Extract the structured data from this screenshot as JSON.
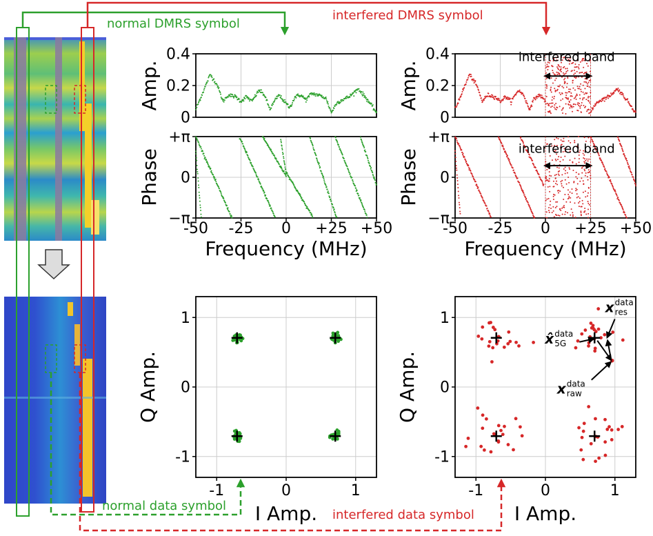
{
  "colors": {
    "normal": "#2ca02c",
    "interfered": "#d62728",
    "axis": "#000000",
    "grid": "#cccccc"
  },
  "annotations": {
    "normal_dmrs": "normal DMRS symbol",
    "interfered_dmrs": "interfered DMRS symbol",
    "normal_data": "normal data symbol",
    "interfered_data": "interfered data symbol",
    "interfered_band": "interfered band"
  },
  "chart_data": [
    {
      "id": "normal-amp",
      "type": "scatter",
      "title": "",
      "xlabel": "",
      "ylabel": "Amp.",
      "xlim": [
        -50,
        50
      ],
      "ylim": [
        0,
        0.4
      ],
      "xticks": [
        "-50",
        "-25",
        "0",
        "+25",
        "+50"
      ],
      "yticks": [
        "0",
        "0.2",
        "0.4"
      ],
      "trend": {
        "x": [
          -50,
          -46,
          -42,
          -38,
          -35,
          -32,
          -28,
          -25,
          -22,
          -19,
          -15,
          -12,
          -9,
          -6,
          -4,
          -1,
          2,
          5,
          8,
          11,
          14,
          18,
          22,
          25,
          28,
          31,
          35,
          40,
          45,
          50
        ],
        "y": [
          0.05,
          0.16,
          0.27,
          0.2,
          0.1,
          0.14,
          0.13,
          0.1,
          0.13,
          0.1,
          0.17,
          0.14,
          0.05,
          0.11,
          0.14,
          0.1,
          0.06,
          0.13,
          0.14,
          0.11,
          0.15,
          0.14,
          0.12,
          0.03,
          0.09,
          0.11,
          0.13,
          0.18,
          0.11,
          0.03
        ]
      }
    },
    {
      "id": "interfered-amp",
      "type": "scatter",
      "ylabel": "Amp.",
      "xlim": [
        -50,
        50
      ],
      "ylim": [
        0,
        0.4
      ],
      "xticks": [
        "-50",
        "-25",
        "0",
        "+25",
        "+50"
      ],
      "yticks": [
        "0",
        "0.2",
        "0.4"
      ],
      "interfered_band": [
        0,
        25
      ],
      "trend": {
        "x": [
          -50,
          -46,
          -42,
          -38,
          -35,
          -32,
          -28,
          -25,
          -22,
          -19,
          -15,
          -12,
          -9,
          -6,
          -3,
          0,
          25,
          28,
          31,
          35,
          40,
          45,
          50
        ],
        "y": [
          0.05,
          0.16,
          0.27,
          0.2,
          0.1,
          0.14,
          0.13,
          0.1,
          0.13,
          0.1,
          0.17,
          0.14,
          0.05,
          0.12,
          0.14,
          0.1,
          0.03,
          0.09,
          0.11,
          0.13,
          0.18,
          0.11,
          0.03
        ]
      }
    },
    {
      "id": "normal-phase",
      "type": "scatter",
      "ylabel": "Phase",
      "xlim": [
        -50,
        50
      ],
      "ylim": [
        -3.1416,
        3.1416
      ],
      "xticks": [
        "-50",
        "-25",
        "0",
        "+25",
        "+50"
      ],
      "yticks": [
        "+π",
        "0",
        "−π"
      ],
      "xlabel": "Frequency (MHz)",
      "wraps": [
        {
          "x0": -50,
          "y0": 2.0,
          "x1": -47,
          "y1": -3.14
        },
        {
          "x0": -50,
          "y0": 3.14,
          "x1": -30,
          "y1": -3.14
        },
        {
          "x0": -26,
          "y0": 3.14,
          "x1": -6,
          "y1": -3.14
        },
        {
          "x0": -13,
          "y0": 3.14,
          "x1": 0,
          "y1": 0.1
        },
        {
          "x0": -3,
          "y0": 2.9,
          "x1": 0,
          "y1": 0.3
        },
        {
          "x0": 0,
          "y0": 0.4,
          "x1": 15,
          "y1": -3.14
        },
        {
          "x0": 13,
          "y0": 3.14,
          "x1": 28,
          "y1": -3.14
        },
        {
          "x0": 27,
          "y0": 3.14,
          "x1": 45,
          "y1": -3.14
        },
        {
          "x0": 41,
          "y0": 3.14,
          "x1": 50,
          "y1": -0.6
        }
      ]
    },
    {
      "id": "interfered-phase",
      "type": "scatter",
      "ylabel": "Phase",
      "xlim": [
        -50,
        50
      ],
      "ylim": [
        -3.1416,
        3.1416
      ],
      "xticks": [
        "-50",
        "-25",
        "0",
        "+25",
        "+50"
      ],
      "yticks": [
        "+π",
        "0",
        "−π"
      ],
      "xlabel": "Frequency (MHz)",
      "interfered_band": [
        0,
        25
      ],
      "wraps": [
        {
          "x0": -50,
          "y0": 2.0,
          "x1": -47,
          "y1": -3.14
        },
        {
          "x0": -50,
          "y0": 3.14,
          "x1": -30,
          "y1": -3.14
        },
        {
          "x0": -26,
          "y0": 3.14,
          "x1": -6,
          "y1": -3.14
        },
        {
          "x0": -14,
          "y0": 3.14,
          "x1": -1,
          "y1": -0.6
        },
        {
          "x0": 25,
          "y0": 3.14,
          "x1": 45,
          "y1": -3.14
        },
        {
          "x0": 40,
          "y0": 3.14,
          "x1": 50,
          "y1": -0.6
        }
      ]
    },
    {
      "id": "normal-constellation",
      "type": "scatter",
      "xlabel": "I Amp.",
      "ylabel": "Q Amp.",
      "xlim": [
        -1.3,
        1.3
      ],
      "ylim": [
        -1.3,
        1.3
      ],
      "xticks": [
        "-1",
        "0",
        "1"
      ],
      "yticks": [
        "-1",
        "0",
        "1"
      ],
      "ideal": [
        [
          -0.707,
          0.707
        ],
        [
          0.707,
          0.707
        ],
        [
          -0.707,
          -0.707
        ],
        [
          0.707,
          -0.707
        ]
      ],
      "spread": 0.06
    },
    {
      "id": "interfered-constellation",
      "type": "scatter",
      "xlabel": "I Amp.",
      "ylabel": "Q Amp.",
      "xlim": [
        -1.3,
        1.3
      ],
      "ylim": [
        -1.3,
        1.3
      ],
      "xticks": [
        "-1",
        "0",
        "1"
      ],
      "yticks": [
        "-1",
        "0",
        "1"
      ],
      "ideal": [
        [
          -0.707,
          0.707
        ],
        [
          0.707,
          0.707
        ],
        [
          -0.707,
          -0.707
        ],
        [
          0.707,
          -0.707
        ]
      ],
      "spread": 0.18,
      "highlight": {
        "x5g": [
          0.707,
          0.707
        ],
        "xres": [
          0.86,
          0.68
        ],
        "xraw": [
          0.96,
          0.38
        ]
      },
      "labels": {
        "x5g": "x̂",
        "x5g_sup": "data",
        "x5g_sub": "5G",
        "xres": "x",
        "xres_sup": "data",
        "xres_sub": "res",
        "xraw": "x",
        "xraw_sup": "data",
        "xraw_sub": "raw"
      }
    }
  ]
}
